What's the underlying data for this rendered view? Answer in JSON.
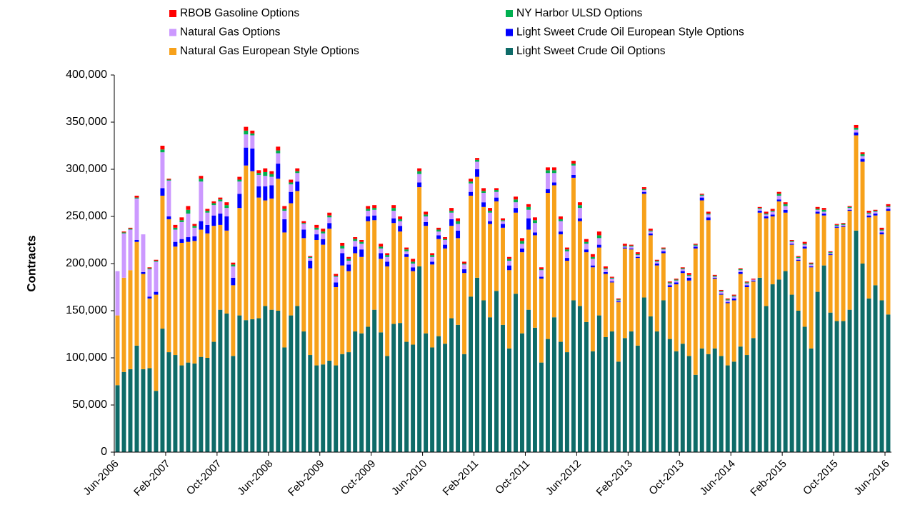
{
  "chart_data": {
    "type": "stacked_bar",
    "y_label": "Contracts",
    "categories": [
      "Jun-2006",
      null,
      null,
      null,
      null,
      null,
      null,
      null,
      "Feb-2007",
      null,
      null,
      null,
      null,
      null,
      null,
      null,
      "Oct-2007",
      null,
      null,
      null,
      null,
      null,
      null,
      null,
      "Jun-2008",
      null,
      null,
      null,
      null,
      null,
      null,
      null,
      "Feb-2009",
      null,
      null,
      null,
      null,
      null,
      null,
      null,
      "Oct-2009",
      null,
      null,
      null,
      null,
      null,
      null,
      null,
      "Jun-2010",
      null,
      null,
      null,
      null,
      null,
      null,
      null,
      "Feb-2011",
      null,
      null,
      null,
      null,
      null,
      null,
      null,
      "Oct-2011",
      null,
      null,
      null,
      null,
      null,
      null,
      null,
      "Jun-2012",
      null,
      null,
      null,
      null,
      null,
      null,
      null,
      "Feb-2013",
      null,
      null,
      null,
      null,
      null,
      null,
      null,
      "Oct-2013",
      null,
      null,
      null,
      null,
      null,
      null,
      null,
      "Jun-2014",
      null,
      null,
      null,
      null,
      null,
      null,
      null,
      "Feb-2015",
      null,
      null,
      null,
      null,
      null,
      null,
      null,
      "Oct-2015",
      null,
      null,
      null,
      null,
      null,
      null,
      null,
      "Jun-2016"
    ],
    "series": [
      {
        "name": "Light Sweet Crude Oil Options",
        "color": "#0e6b68",
        "values": [
          71000,
          85000,
          88000,
          113000,
          88000,
          89000,
          65000,
          131000,
          106000,
          103000,
          92000,
          95000,
          94000,
          101000,
          100000,
          117000,
          151000,
          147000,
          102000,
          145000,
          140000,
          141000,
          142000,
          155000,
          151000,
          150000,
          111000,
          145000,
          155000,
          128000,
          103000,
          92000,
          93000,
          97000,
          92000,
          104000,
          106000,
          128000,
          126000,
          133000,
          151000,
          127000,
          102000,
          136000,
          137000,
          117000,
          114000,
          197000,
          126000,
          111000,
          123000,
          115000,
          142000,
          135000,
          104000,
          165000,
          185000,
          161000,
          143000,
          171000,
          135000,
          110000,
          168000,
          126000,
          151000,
          132000,
          95000,
          120000,
          143000,
          117000,
          106000,
          161000,
          155000,
          138000,
          107000,
          145000,
          122000,
          128000,
          96000,
          121000,
          128000,
          113000,
          164000,
          144000,
          128000,
          161000,
          120000,
          107000,
          115000,
          102000,
          82000,
          110000,
          104000,
          110000,
          102000,
          92000,
          96000,
          112000,
          103000,
          121000,
          185000,
          155000,
          178000,
          183000,
          192000,
          167000,
          150000,
          133000,
          110000,
          170000,
          198000,
          148000,
          139000,
          139000,
          151000,
          235000,
          200000,
          163000,
          177000,
          161000,
          146000
        ]
      },
      {
        "name": "Natural Gas European Style Options",
        "color": "#f7a11a",
        "values": [
          74000,
          100000,
          105000,
          110000,
          101000,
          74000,
          102000,
          141000,
          141000,
          115000,
          130000,
          128000,
          130000,
          135000,
          132000,
          123000,
          90000,
          88000,
          75000,
          114000,
          164000,
          157000,
          128000,
          112000,
          118000,
          140000,
          122000,
          119000,
          122000,
          99000,
          92000,
          133000,
          127000,
          140000,
          83000,
          94000,
          86000,
          83000,
          81000,
          112000,
          95000,
          78000,
          95000,
          107000,
          97000,
          90000,
          78000,
          84000,
          114000,
          88000,
          103000,
          101000,
          98000,
          92000,
          86000,
          107000,
          107000,
          99000,
          99000,
          95000,
          103000,
          83000,
          86000,
          86000,
          85000,
          98000,
          89000,
          155000,
          140000,
          114000,
          97000,
          130000,
          90000,
          74000,
          89000,
          72000,
          67000,
          52000,
          63000,
          95000,
          87000,
          93000,
          110000,
          86000,
          70000,
          50000,
          55000,
          71000,
          75000,
          80000,
          134000,
          157000,
          142000,
          74000,
          65000,
          66000,
          65000,
          77000,
          72000,
          60000,
          69000,
          93000,
          72000,
          83000,
          62000,
          53000,
          53000,
          83000,
          86000,
          83000,
          53000,
          61000,
          99000,
          100000,
          105000,
          101000,
          108000,
          86000,
          74000,
          70000,
          110000
        ]
      },
      {
        "name": "Light Sweet Crude Oil European Style Options",
        "color": "#0000ff",
        "values": [
          0,
          0,
          0,
          2000,
          2000,
          2000,
          3000,
          8000,
          3000,
          5000,
          4000,
          5000,
          5000,
          9000,
          9000,
          11000,
          12000,
          15000,
          8000,
          15000,
          19000,
          24000,
          12000,
          15000,
          14000,
          16000,
          14000,
          12000,
          10000,
          9000,
          8000,
          6000,
          6000,
          6000,
          5000,
          13000,
          7000,
          7000,
          8000,
          5000,
          5000,
          6000,
          5000,
          5000,
          6000,
          3000,
          4000,
          5000,
          4000,
          3000,
          4000,
          4000,
          7000,
          8000,
          4000,
          4000,
          8000,
          5000,
          3000,
          4000,
          4000,
          5000,
          5000,
          4000,
          12000,
          3000,
          2000,
          4000,
          3000,
          3000,
          3000,
          3000,
          3000,
          3000,
          2000,
          3000,
          2000,
          1000,
          1000,
          1000,
          1000,
          1000,
          2000,
          2000,
          2000,
          2000,
          2000,
          2000,
          2000,
          3000,
          2000,
          3000,
          3000,
          1000,
          1000,
          1000,
          2000,
          2000,
          2000,
          1000,
          2000,
          2000,
          2000,
          2000,
          3000,
          1000,
          1000,
          2000,
          1000,
          2000,
          2000,
          1000,
          1000,
          1000,
          1000,
          3000,
          3000,
          2000,
          2000,
          2000,
          2000
        ]
      },
      {
        "name": "Natural Gas Options",
        "color": "#cc99ff",
        "values": [
          47000,
          47000,
          43000,
          44000,
          40000,
          29000,
          32000,
          38000,
          38000,
          13000,
          18000,
          25000,
          9000,
          42000,
          13000,
          11000,
          13000,
          9000,
          12000,
          13000,
          14000,
          14000,
          12000,
          11000,
          9000,
          11000,
          9000,
          8000,
          9000,
          6000,
          3000,
          5000,
          6000,
          6000,
          6000,
          5000,
          4000,
          6000,
          6000,
          6000,
          6000,
          5000,
          5000,
          8000,
          5000,
          3000,
          4000,
          9000,
          6000,
          5000,
          4000,
          5000,
          7000,
          7000,
          5000,
          9000,
          8000,
          10000,
          9000,
          6000,
          3000,
          5000,
          6000,
          5000,
          9000,
          10000,
          7000,
          17000,
          10000,
          11000,
          7000,
          10000,
          11000,
          6000,
          7000,
          7000,
          3000,
          3000,
          1000,
          1000,
          2000,
          2000,
          2000,
          2000,
          2000,
          2000,
          2000,
          2000,
          2000,
          2000,
          1000,
          2000,
          3000,
          1000,
          2000,
          2000,
          2000,
          2000,
          2000,
          1000,
          2000,
          2000,
          3000,
          4000,
          4000,
          2000,
          2000,
          2000,
          2000,
          2000,
          2000,
          1000,
          1000,
          1000,
          2000,
          3000,
          3000,
          2000,
          2000,
          2000,
          2000
        ]
      },
      {
        "name": "NY Harbor ULSD Options",
        "color": "#00b050",
        "values": [
          0,
          1000,
          1000,
          1000,
          0,
          1000,
          1000,
          3000,
          1000,
          2000,
          2000,
          4000,
          2000,
          3000,
          2000,
          2000,
          2000,
          3000,
          2000,
          2000,
          4000,
          2000,
          2000,
          4000,
          3000,
          3000,
          2000,
          2000,
          2000,
          1000,
          1000,
          2000,
          2000,
          2000,
          1000,
          3000,
          2000,
          2000,
          2000,
          2000,
          2000,
          2000,
          2000,
          3000,
          2000,
          2000,
          2000,
          3000,
          2000,
          2000,
          2000,
          1000,
          2000,
          3000,
          1000,
          2000,
          2000,
          2000,
          2000,
          2000,
          1000,
          2000,
          3000,
          3000,
          3000,
          3000,
          1000,
          3000,
          3000,
          2000,
          2000,
          2000,
          3000,
          2000,
          2000,
          3000,
          1000,
          1000,
          1000,
          1000,
          1000,
          1000,
          1000,
          1000,
          1000,
          1000,
          1000,
          1000,
          1000,
          1000,
          1000,
          1000,
          1000,
          1000,
          1000,
          1000,
          1000,
          1000,
          1000,
          0,
          1000,
          1000,
          1000,
          2000,
          2000,
          1000,
          1000,
          1000,
          1000,
          1000,
          2000,
          1000,
          1000,
          1000,
          1000,
          2000,
          2000,
          1000,
          1000,
          1000,
          1000
        ]
      },
      {
        "name": "RBOB Gasoline Options",
        "color": "#ff0000",
        "values": [
          0,
          1000,
          1000,
          2000,
          0,
          1000,
          1000,
          4000,
          1000,
          3000,
          3000,
          4000,
          2000,
          3000,
          2000,
          2000,
          2000,
          3000,
          2000,
          3000,
          4000,
          3000,
          3000,
          4000,
          3000,
          4000,
          3000,
          3000,
          3000,
          2000,
          1000,
          3000,
          3000,
          3000,
          2000,
          3000,
          2000,
          2000,
          2000,
          3000,
          3000,
          3000,
          2000,
          3000,
          3000,
          2000,
          3000,
          3000,
          3000,
          2000,
          2000,
          2000,
          3000,
          3000,
          2000,
          3000,
          2000,
          3000,
          3000,
          2000,
          2000,
          2000,
          3000,
          3000,
          3000,
          3000,
          2000,
          3000,
          3000,
          3000,
          2000,
          3000,
          3000,
          3000,
          3000,
          4000,
          2000,
          1000,
          1000,
          2000,
          1000,
          2000,
          2000,
          2000,
          1000,
          1000,
          1000,
          1000,
          1000,
          2000,
          1000,
          1000,
          2000,
          1000,
          1000,
          1000,
          1000,
          1000,
          1000,
          1000,
          1000,
          2000,
          2000,
          2000,
          2000,
          1000,
          1000,
          2000,
          1000,
          2000,
          2000,
          1000,
          1000,
          1000,
          1000,
          3000,
          2000,
          2000,
          1000,
          2000,
          2000
        ]
      }
    ],
    "ylim": [
      0,
      400000
    ],
    "yticks": [
      0,
      {
        "value": 50000,
        "label": "50,000"
      },
      {
        "value": 100000,
        "label": "100,000"
      },
      {
        "value": 150000,
        "label": "150,000"
      },
      {
        "value": 200000,
        "label": "200,000"
      },
      {
        "value": 250000,
        "label": "250,000"
      },
      {
        "value": 300000,
        "label": "300,000"
      },
      {
        "value": 350000,
        "label": "350,000"
      },
      {
        "value": 400000,
        "label": "400,000"
      }
    ],
    "grid": false,
    "legend": "top"
  }
}
